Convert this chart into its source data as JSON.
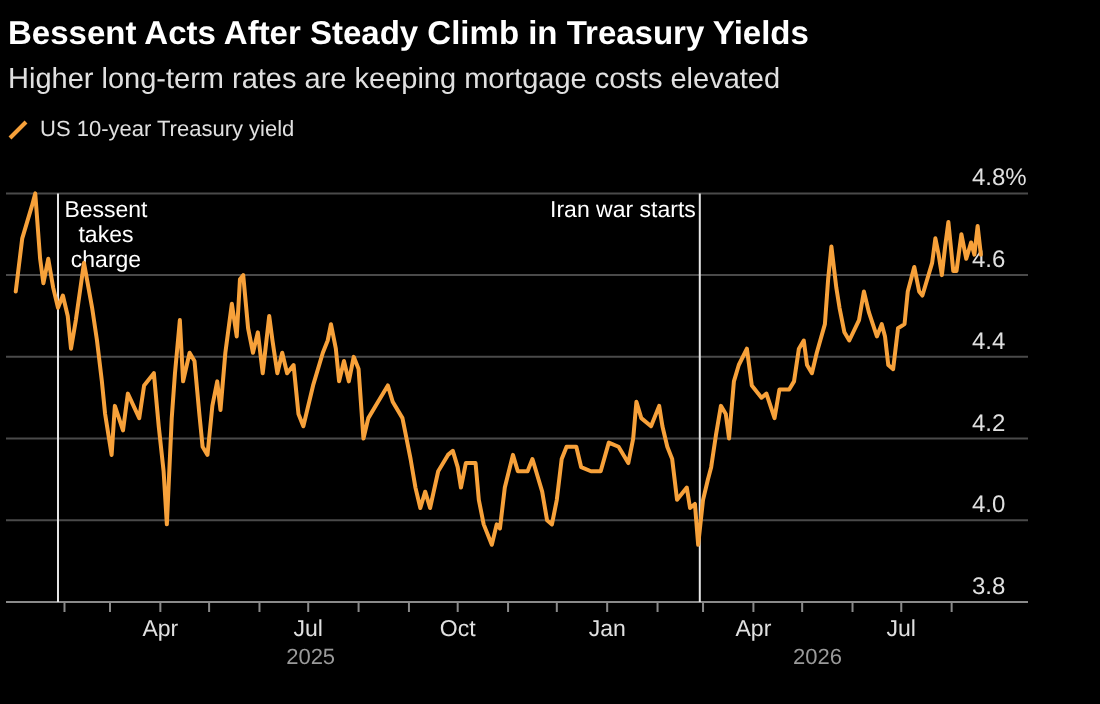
{
  "chart_data": {
    "type": "line",
    "title": "Bessent Acts After Steady Climb in Treasury Yields",
    "subtitle": "Higher long-term rates are keeping mortgage costs elevated",
    "xlim": [
      "2024-12-27",
      "2026-09-17"
    ],
    "xticks": [
      {
        "value": "2025-02-01",
        "label": null
      },
      {
        "value": "2025-03-01",
        "label": null
      },
      {
        "value": "2025-04-01",
        "label": "Apr"
      },
      {
        "value": "2025-05-01",
        "label": null
      },
      {
        "value": "2025-06-01",
        "label": null
      },
      {
        "value": "2025-07-01",
        "label": "Jul"
      },
      {
        "value": "2025-08-01",
        "label": null
      },
      {
        "value": "2025-09-01",
        "label": null
      },
      {
        "value": "2025-10-01",
        "label": "Oct"
      },
      {
        "value": "2025-11-01",
        "label": null
      },
      {
        "value": "2025-12-01",
        "label": null
      },
      {
        "value": "2026-01-01",
        "label": "Jan"
      },
      {
        "value": "2026-02-01",
        "label": null
      },
      {
        "value": "2026-03-01",
        "label": null
      },
      {
        "value": "2026-04-01",
        "label": "Apr"
      },
      {
        "value": "2026-05-01",
        "label": null
      },
      {
        "value": "2026-06-01",
        "label": null
      },
      {
        "value": "2026-07-01",
        "label": "Jul"
      },
      {
        "value": "2026-08-01",
        "label": null
      }
    ],
    "annotations": [
      "2025",
      "2026"
    ],
    "ylim": [
      3.8,
      4.8
    ],
    "yticks": [
      {
        "value": 3.8,
        "label": "3.8"
      },
      {
        "value": 4,
        "label": "4.0"
      },
      {
        "value": 4.2,
        "label": "4.2"
      },
      {
        "value": 4.4,
        "label": "4.4"
      },
      {
        "value": 4.6,
        "label": "4.6"
      },
      {
        "value": 4.8,
        "label": "4.8%"
      }
    ],
    "grid": "y",
    "legend": "top left",
    "ref_lines": [
      {
        "axis": "x",
        "value": "2025-01-28",
        "label": "Bessent\ntakes\ncharge",
        "color": "#e6e6e6"
      },
      {
        "axis": "x",
        "value": "2026-02-27",
        "label": "Iran war starts",
        "color": "#e6e6e6"
      }
    ],
    "series": [
      {
        "name": "US 10-year Treasury yield",
        "color": "#f7a13a",
        "x": [
          "2025-01-02",
          "2025-01-06",
          "2025-01-12",
          "2025-01-14",
          "2025-01-17",
          "2025-01-19",
          "2025-01-22",
          "2025-01-25",
          "2025-01-28",
          "2025-01-31",
          "2025-02-03",
          "2025-02-05",
          "2025-02-08",
          "2025-02-13",
          "2025-02-18",
          "2025-02-21",
          "2025-02-24",
          "2025-02-26",
          "2025-03-02",
          "2025-03-04",
          "2025-03-09",
          "2025-03-12",
          "2025-03-19",
          "2025-03-22",
          "2025-03-28",
          "2025-03-31",
          "2025-04-03",
          "2025-04-05",
          "2025-04-08",
          "2025-04-10",
          "2025-04-13",
          "2025-04-15",
          "2025-04-19",
          "2025-04-22",
          "2025-04-25",
          "2025-04-27",
          "2025-04-30",
          "2025-05-03",
          "2025-05-06",
          "2025-05-08",
          "2025-05-11",
          "2025-05-13",
          "2025-05-15",
          "2025-05-18",
          "2025-05-20",
          "2025-05-22",
          "2025-05-25",
          "2025-05-28",
          "2025-05-31",
          "2025-06-03",
          "2025-06-07",
          "2025-06-09",
          "2025-06-12",
          "2025-06-15",
          "2025-06-18",
          "2025-06-22",
          "2025-06-25",
          "2025-06-28",
          "2025-07-04",
          "2025-07-10",
          "2025-07-13",
          "2025-07-15",
          "2025-07-18",
          "2025-07-20",
          "2025-07-23",
          "2025-07-26",
          "2025-07-29",
          "2025-08-01",
          "2025-08-04",
          "2025-08-07",
          "2025-08-13",
          "2025-08-19",
          "2025-08-22",
          "2025-08-28",
          "2025-08-30",
          "2025-09-02",
          "2025-09-05",
          "2025-09-08",
          "2025-09-11",
          "2025-09-14",
          "2025-09-19",
          "2025-09-25",
          "2025-09-28",
          "2025-10-01",
          "2025-10-03",
          "2025-10-06",
          "2025-10-12",
          "2025-10-14",
          "2025-10-17",
          "2025-10-22",
          "2025-10-25",
          "2025-10-27",
          "2025-10-30",
          "2025-11-04",
          "2025-11-07",
          "2025-11-13",
          "2025-11-16",
          "2025-11-22",
          "2025-11-25",
          "2025-11-28",
          "2025-12-01",
          "2025-12-04",
          "2025-12-07",
          "2025-12-13",
          "2025-12-16",
          "2025-12-22",
          "2025-12-28",
          "2026-01-02",
          "2026-01-08",
          "2026-01-14",
          "2026-01-17",
          "2026-01-19",
          "2026-01-22",
          "2026-01-28",
          "2026-02-02",
          "2026-02-04",
          "2026-02-07",
          "2026-02-10",
          "2026-02-13",
          "2026-02-19",
          "2026-02-21",
          "2026-02-24",
          "2026-02-26",
          "2026-03-01",
          "2026-03-04",
          "2026-03-06",
          "2026-03-09",
          "2026-03-12",
          "2026-03-15",
          "2026-03-17",
          "2026-03-20",
          "2026-03-23",
          "2026-03-28",
          "2026-03-31",
          "2026-04-06",
          "2026-04-09",
          "2026-04-14",
          "2026-04-17",
          "2026-04-23",
          "2026-04-26",
          "2026-04-29",
          "2026-05-02",
          "2026-05-04",
          "2026-05-07",
          "2026-05-10",
          "2026-05-15",
          "2026-05-17",
          "2026-05-19",
          "2026-05-22",
          "2026-05-24",
          "2026-05-27",
          "2026-05-30",
          "2026-06-05",
          "2026-06-08",
          "2026-06-11",
          "2026-06-16",
          "2026-06-19",
          "2026-06-21",
          "2026-06-23",
          "2026-06-26",
          "2026-06-29",
          "2026-07-03",
          "2026-07-05",
          "2026-07-09",
          "2026-07-12",
          "2026-07-14",
          "2026-07-20",
          "2026-07-22",
          "2026-07-24",
          "2026-07-26",
          "2026-07-28",
          "2026-07-30",
          "2026-08-02",
          "2026-08-04",
          "2026-08-07",
          "2026-08-10",
          "2026-08-13",
          "2026-08-15",
          "2026-08-17",
          "2026-08-19"
        ],
        "values": [
          4.56,
          4.69,
          4.77,
          4.8,
          4.64,
          4.58,
          4.64,
          4.57,
          4.52,
          4.55,
          4.5,
          4.42,
          4.49,
          4.63,
          4.52,
          4.44,
          4.34,
          4.26,
          4.16,
          4.28,
          4.22,
          4.31,
          4.25,
          4.33,
          4.36,
          4.23,
          4.12,
          3.99,
          4.25,
          4.36,
          4.49,
          4.34,
          4.41,
          4.39,
          4.26,
          4.18,
          4.16,
          4.28,
          4.34,
          4.27,
          4.41,
          4.47,
          4.53,
          4.45,
          4.59,
          4.6,
          4.47,
          4.41,
          4.46,
          4.36,
          4.5,
          4.44,
          4.36,
          4.41,
          4.36,
          4.38,
          4.26,
          4.23,
          4.33,
          4.41,
          4.44,
          4.48,
          4.42,
          4.34,
          4.39,
          4.34,
          4.4,
          4.37,
          4.2,
          4.25,
          4.29,
          4.33,
          4.29,
          4.25,
          4.21,
          4.15,
          4.08,
          4.03,
          4.07,
          4.03,
          4.12,
          4.16,
          4.17,
          4.13,
          4.08,
          4.14,
          4.14,
          4.05,
          3.99,
          3.94,
          3.99,
          3.98,
          4.08,
          4.16,
          4.12,
          4.12,
          4.15,
          4.07,
          4.0,
          3.99,
          4.05,
          4.15,
          4.18,
          4.18,
          4.13,
          4.12,
          4.12,
          4.19,
          4.18,
          4.14,
          4.2,
          4.29,
          4.25,
          4.23,
          4.28,
          4.23,
          4.18,
          4.15,
          4.05,
          4.08,
          4.03,
          4.04,
          3.94,
          4.05,
          4.1,
          4.13,
          4.21,
          4.28,
          4.26,
          4.2,
          4.34,
          4.38,
          4.42,
          4.33,
          4.3,
          4.31,
          4.25,
          4.32,
          4.32,
          4.34,
          4.42,
          4.44,
          4.38,
          4.36,
          4.41,
          4.48,
          4.59,
          4.67,
          4.57,
          4.52,
          4.46,
          4.44,
          4.49,
          4.56,
          4.51,
          4.45,
          4.48,
          4.45,
          4.38,
          4.37,
          4.47,
          4.48,
          4.56,
          4.62,
          4.56,
          4.55,
          4.63,
          4.69,
          4.65,
          4.6,
          4.67,
          4.73,
          4.61,
          4.61,
          4.7,
          4.64,
          4.68,
          4.65,
          4.72,
          4.65
        ]
      }
    ]
  }
}
